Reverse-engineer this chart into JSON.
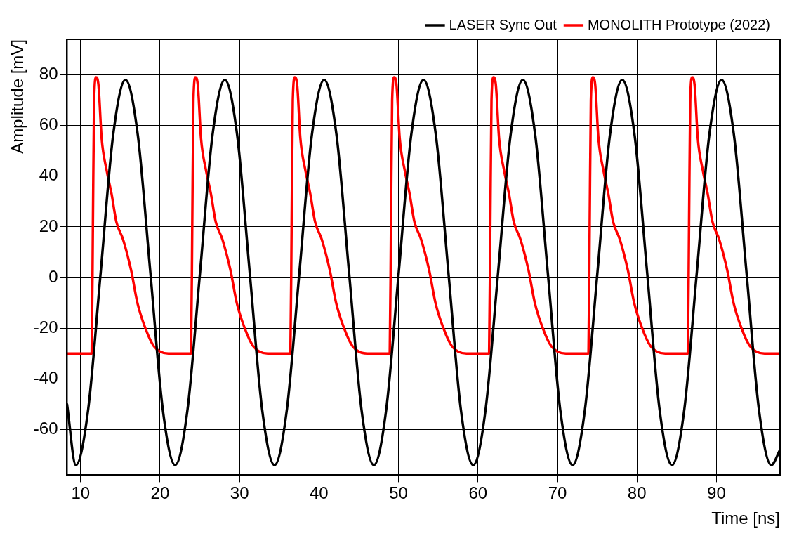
{
  "chart_data": {
    "type": "line",
    "xlabel": "Time [ns]",
    "ylabel": "Amplitude [mV]",
    "xlim": [
      8.3,
      98
    ],
    "xticks": [
      10,
      20,
      30,
      40,
      50,
      60,
      70,
      80,
      90
    ],
    "ylim": [
      -78,
      94
    ],
    "yticks": [
      -60,
      -40,
      -20,
      0,
      20,
      40,
      60,
      80
    ],
    "grid": true,
    "legend": "top right",
    "marker": "none",
    "line_style": "solid",
    "series": [
      {
        "name": "LASER Sync Out",
        "color": "#000000",
        "x": [
          8.3,
          9.4,
          10.96,
          12.53,
          14.09,
          15.65,
          17.21,
          18.78,
          20.34,
          21.9,
          23.46,
          25.03,
          26.59,
          28.15,
          29.71,
          31.28,
          32.84,
          34.4,
          35.96,
          37.53,
          39.09,
          40.65,
          42.21,
          43.78,
          45.34,
          46.9,
          48.46,
          50.03,
          51.59,
          53.15,
          54.71,
          56.28,
          57.84,
          59.4,
          60.96,
          62.53,
          64.09,
          65.65,
          67.21,
          68.78,
          70.34,
          71.9,
          73.46,
          75.03,
          76.59,
          78.15,
          79.71,
          81.28,
          82.84,
          84.4,
          85.96,
          87.53,
          89.09,
          90.65,
          92.21,
          93.78,
          95.34,
          96.9,
          98
        ],
        "values": [
          -50,
          -74,
          -52,
          2,
          56,
          78,
          56,
          2,
          -52,
          -74,
          -52,
          2,
          56,
          78,
          56,
          2,
          -52,
          -74,
          -52,
          2,
          56,
          78,
          56,
          2,
          -52,
          -74,
          -52,
          2,
          56,
          78,
          56,
          2,
          -52,
          -74,
          -52,
          2,
          56,
          78,
          56,
          2,
          -52,
          -74,
          -52,
          2,
          56,
          78,
          56,
          2,
          -52,
          -74,
          -52,
          2,
          56,
          78,
          56,
          2,
          -52,
          -74,
          -68
        ]
      },
      {
        "name": "MONOLITH Prototype (2022)",
        "color": "#ff0000",
        "x": [
          8.3,
          11.4,
          11.55,
          11.7,
          11.95,
          12.25,
          12.65,
          13.3,
          13.9,
          14.5,
          15.35,
          16.35,
          17.15,
          18.15,
          19.2,
          21.05,
          23.9,
          24.05,
          24.2,
          24.45,
          24.75,
          25.15,
          25.8,
          26.4,
          27.0,
          27.85,
          28.85,
          29.65,
          30.65,
          31.7,
          33.55,
          36.4,
          36.55,
          36.7,
          36.95,
          37.25,
          37.65,
          38.3,
          38.9,
          39.5,
          40.35,
          41.35,
          42.15,
          43.15,
          44.2,
          46.05,
          48.9,
          49.05,
          49.2,
          49.45,
          49.75,
          50.15,
          50.8,
          51.4,
          52.0,
          52.85,
          53.85,
          54.65,
          55.65,
          56.7,
          58.55,
          61.4,
          61.55,
          61.7,
          61.95,
          62.25,
          62.65,
          63.3,
          63.9,
          64.5,
          65.35,
          66.35,
          67.15,
          68.15,
          69.2,
          71.05,
          73.9,
          74.05,
          74.2,
          74.45,
          74.75,
          75.15,
          75.8,
          76.4,
          77.0,
          77.85,
          78.85,
          79.65,
          80.65,
          81.7,
          83.55,
          86.4,
          86.55,
          86.7,
          86.95,
          87.25,
          87.65,
          88.3,
          88.9,
          89.5,
          90.35,
          91.35,
          92.15,
          93.15,
          94.2,
          96.05,
          98
        ],
        "values": [
          -30,
          -30,
          20,
          70,
          79,
          76,
          55,
          42,
          33,
          22,
          15,
          3,
          -10,
          -20,
          -27,
          -30,
          -30,
          20,
          70,
          79,
          76,
          55,
          42,
          33,
          22,
          15,
          3,
          -10,
          -20,
          -27,
          -30,
          -30,
          20,
          70,
          79,
          76,
          55,
          42,
          33,
          22,
          15,
          3,
          -10,
          -20,
          -27,
          -30,
          -30,
          20,
          70,
          79,
          76,
          55,
          42,
          33,
          22,
          15,
          3,
          -10,
          -20,
          -27,
          -30,
          -30,
          20,
          70,
          79,
          76,
          55,
          42,
          33,
          22,
          15,
          3,
          -10,
          -20,
          -27,
          -30,
          -30,
          20,
          70,
          79,
          76,
          55,
          42,
          33,
          22,
          15,
          3,
          -10,
          -20,
          -27,
          -30,
          -30,
          20,
          70,
          79,
          76,
          55,
          42,
          33,
          22,
          15,
          3,
          -10,
          -20,
          -27,
          -30,
          -30
        ]
      }
    ]
  }
}
